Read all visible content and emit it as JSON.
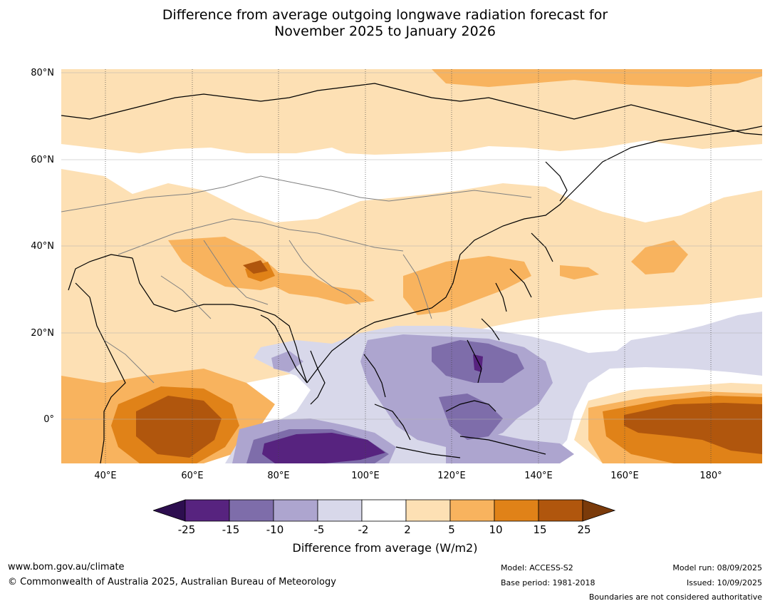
{
  "title_line1": "Difference from average outgoing longwave radiation forecast for",
  "title_line2": "November 2025 to January 2026",
  "map": {
    "lat_labels": [
      "80°N",
      "60°N",
      "40°N",
      "20°N",
      "0°"
    ],
    "lon_labels": [
      "40°E",
      "60°E",
      "80°E",
      "100°E",
      "120°E",
      "140°E",
      "160°E",
      "180°"
    ],
    "lon_range": [
      30,
      190
    ],
    "lat_range": [
      -10,
      80
    ]
  },
  "colorbar": {
    "ticks": [
      "-25",
      "-15",
      "-10",
      "-5",
      "-2",
      "2",
      "5",
      "10",
      "15",
      "25"
    ],
    "colors": [
      "#2d0e4f",
      "#57237f",
      "#7e6daa",
      "#ada5cf",
      "#d8d8ea",
      "#ffffff",
      "#fde0b4",
      "#f8b35e",
      "#e08218",
      "#b0560d",
      "#7a3a0a"
    ],
    "label": "Difference from average (W/m2)"
  },
  "footer": {
    "url": "www.bom.gov.au/climate",
    "copyright": "© Commonwealth of Australia 2025, Australian Bureau of Meteorology",
    "model": "Model: ACCESS-S2",
    "base_period": "Base period: 1981-2018",
    "model_run": "Model run: 08/09/2025",
    "issued": "Issued: 10/09/2025",
    "disclaimer": "Boundaries are not considered authoritative"
  }
}
